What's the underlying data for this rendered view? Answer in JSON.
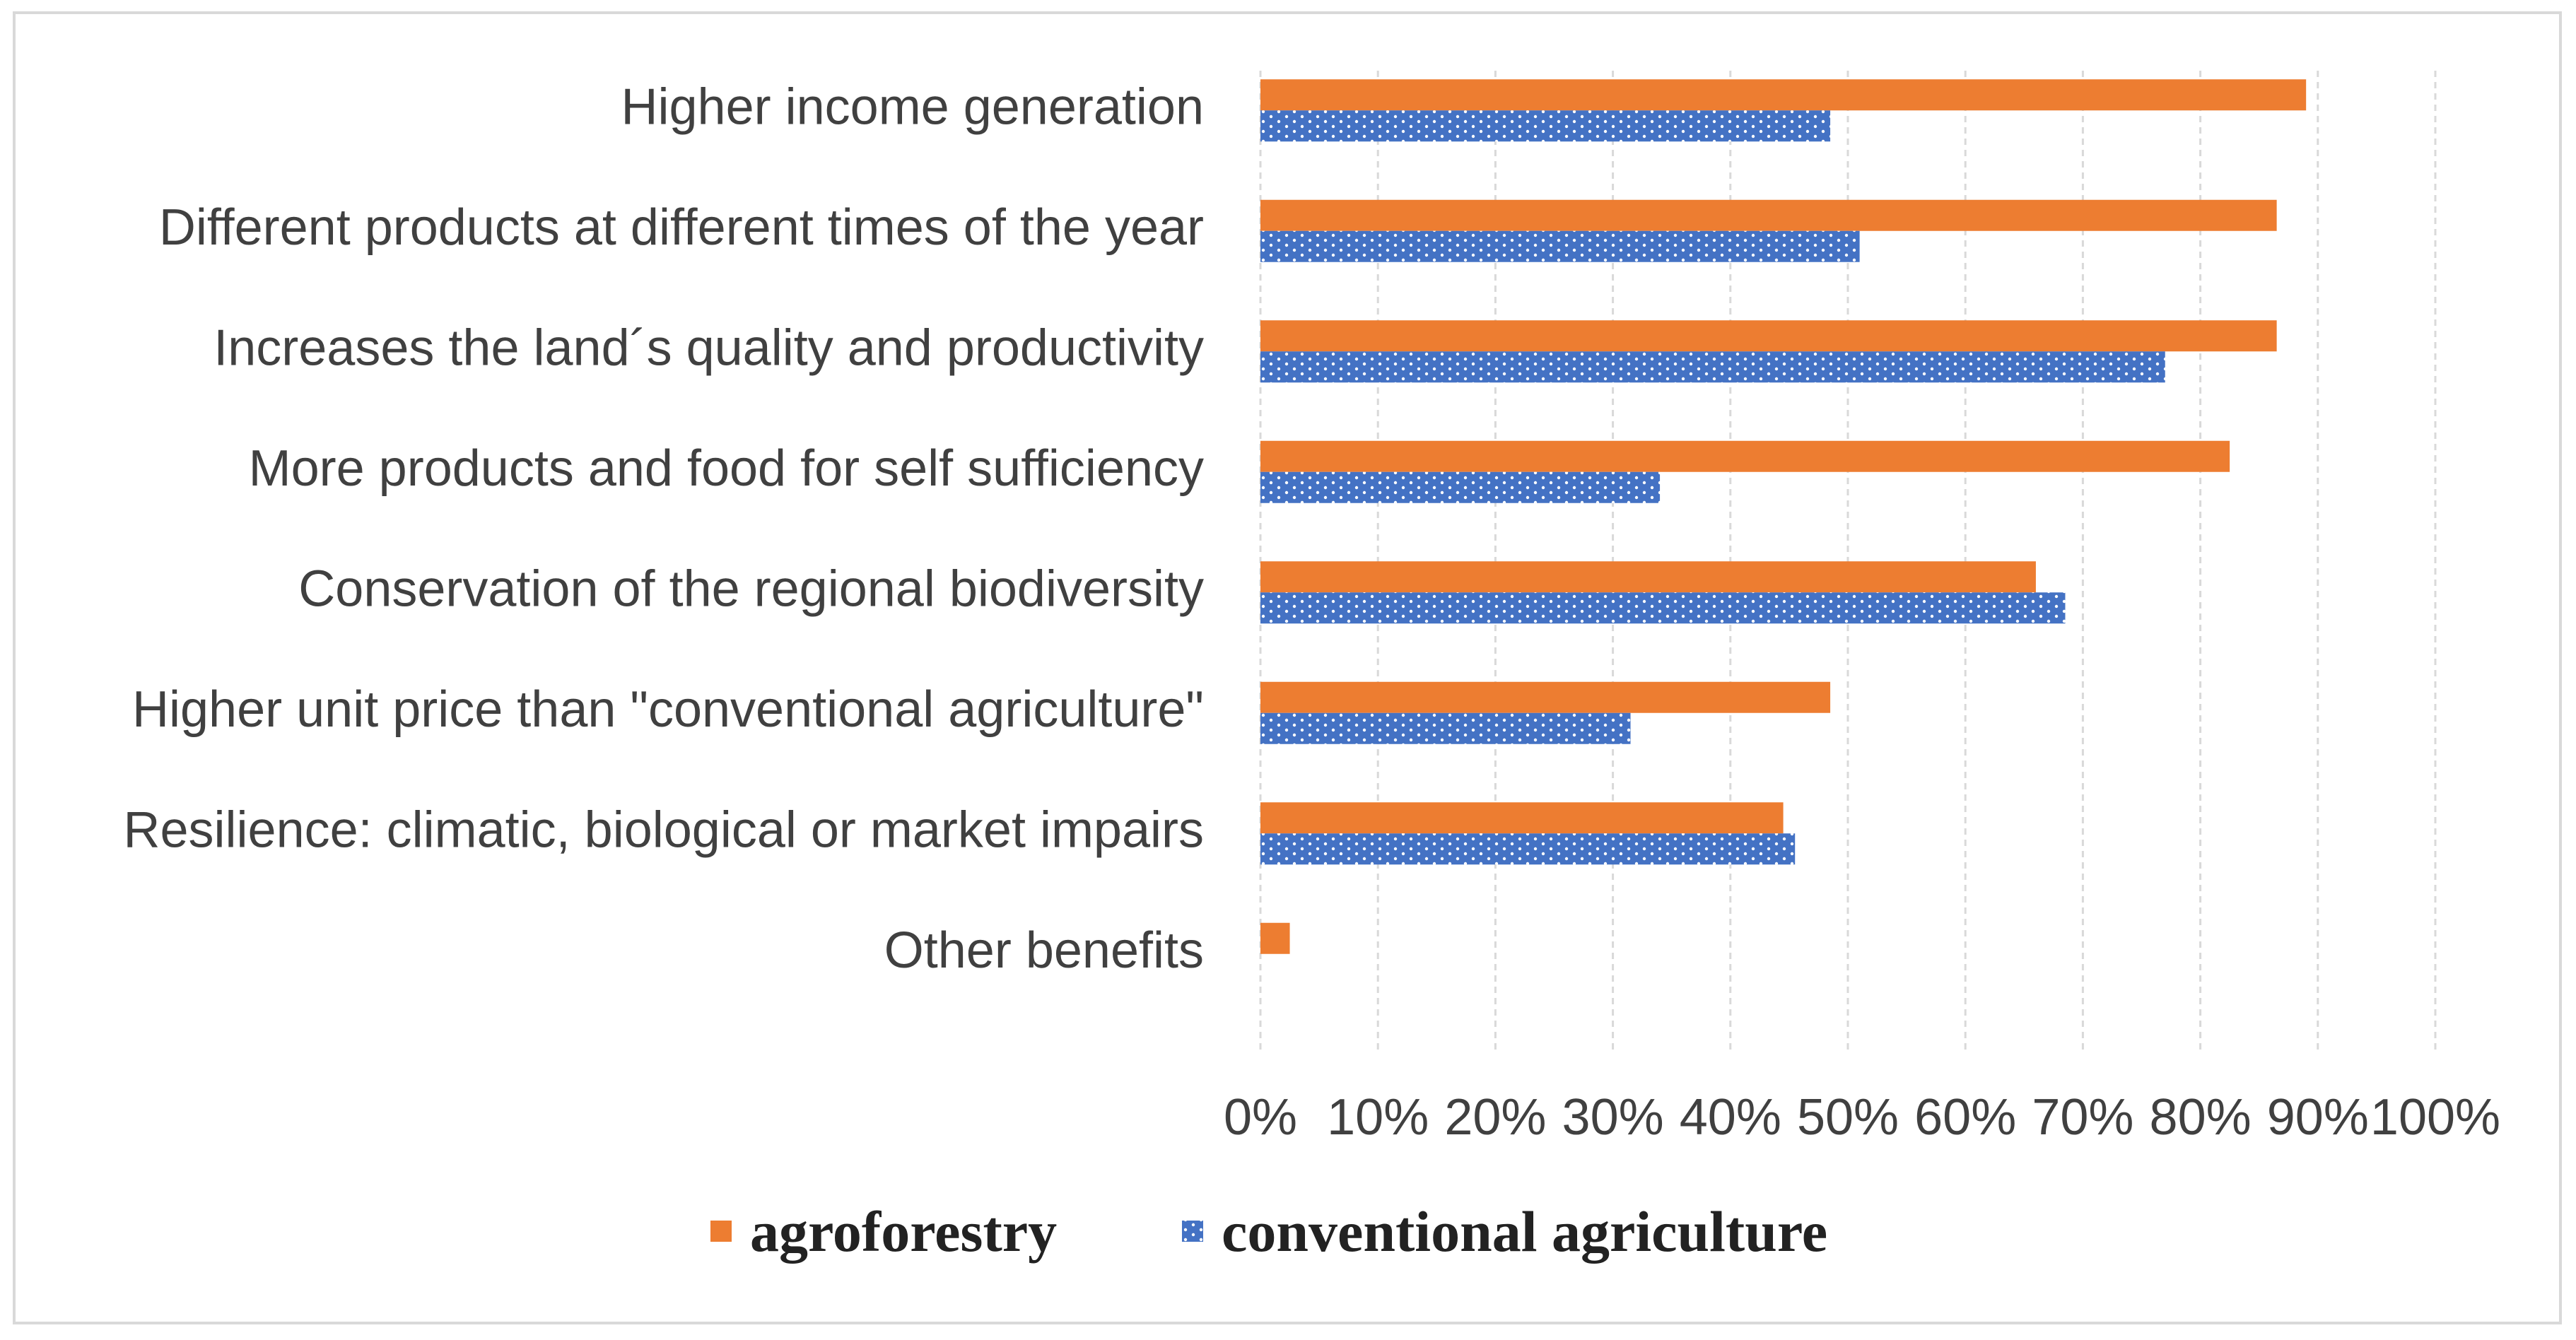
{
  "chart_data": {
    "type": "bar",
    "orientation": "horizontal",
    "categories": [
      "Higher income generation",
      "Different products at different times of the year",
      "Increases the land´s quality and productivity",
      "More products and food for self sufficiency",
      "Conservation of the regional biodiversity",
      "Higher unit price than \"conventional agriculture\"",
      "Resilience: climatic, biological or market impairs",
      "Other benefits"
    ],
    "series": [
      {
        "name": "agroforestry",
        "color": "#ED7D31",
        "pattern": "solid",
        "values": [
          89,
          86.5,
          86.5,
          82.5,
          66,
          48.5,
          44.5,
          2.5
        ]
      },
      {
        "name": "conventional agriculture",
        "color": "#4472C4",
        "pattern": "dotted",
        "values": [
          48.5,
          51,
          77,
          34,
          68.5,
          31.5,
          45.5,
          0
        ]
      }
    ],
    "xlim": [
      0,
      100
    ],
    "xticks": [
      "0%",
      "10%",
      "20%",
      "30%",
      "40%",
      "50%",
      "60%",
      "70%",
      "80%",
      "90%",
      "100%"
    ],
    "grid": true,
    "grid_style": "dashed-vertical",
    "legend_position": "bottom",
    "title": "",
    "xlabel": "",
    "ylabel": ""
  }
}
